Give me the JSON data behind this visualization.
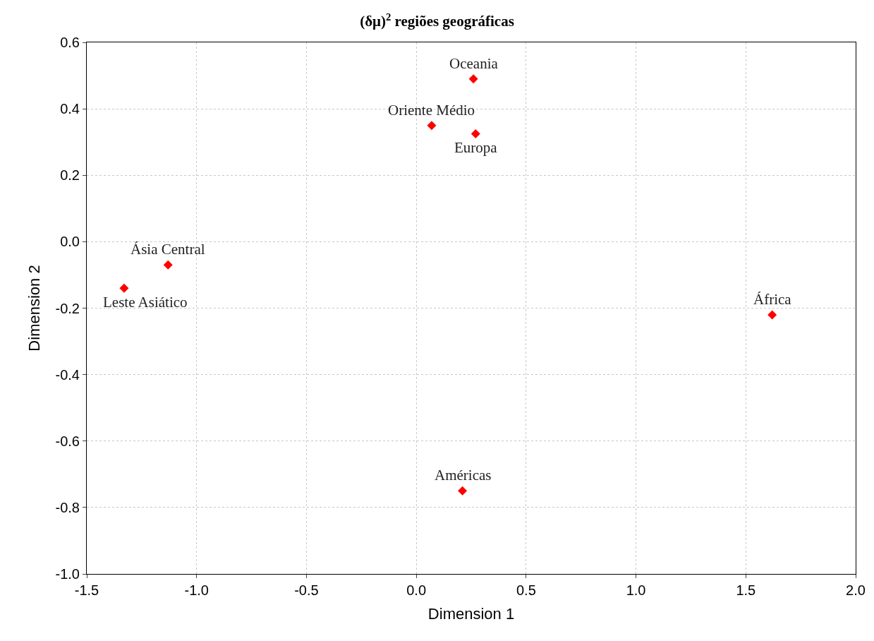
{
  "chart_data": {
    "type": "scatter",
    "title": "(δμ)$^{2}$ regiões geográficas",
    "xlabel": "Dimension 1",
    "ylabel": "Dimension 2",
    "x": [
      0.26,
      0.07,
      0.27,
      -1.13,
      -1.33,
      1.62,
      0.21
    ],
    "series": [
      {
        "color": "#ff0000",
        "values": [
          0.49,
          0.35,
          0.325,
          -0.07,
          -0.14,
          -0.22,
          -0.75
        ]
      }
    ],
    "annotations": [
      {
        "text": "Oceania",
        "x": 0.26,
        "y": 0.49
      },
      {
        "text": "Oriente Médio",
        "x": 0.07,
        "y": 0.35
      },
      {
        "text": "Europa",
        "x": 0.27,
        "y": 0.325
      },
      {
        "text": "Ásia Central",
        "x": -1.13,
        "y": -0.07
      },
      {
        "text": "Leste Asiático",
        "x": -1.33,
        "y": -0.14
      },
      {
        "text": "África",
        "x": 1.62,
        "y": -0.22
      },
      {
        "text": "Américas",
        "x": 0.21,
        "y": -0.75
      }
    ],
    "xlim": [
      -1.5,
      2.0
    ],
    "xticks": [
      {
        "value": -1.5,
        "label": "-1.5"
      },
      {
        "value": -1.0,
        "label": "-1.0"
      },
      {
        "value": -0.5,
        "label": "-0.5"
      },
      {
        "value": 0.0,
        "label": "0.0"
      },
      {
        "value": 0.5,
        "label": "0.5"
      },
      {
        "value": 1.0,
        "label": "1.0"
      },
      {
        "value": 1.5,
        "label": "1.5"
      },
      {
        "value": 2.0,
        "label": "2.0"
      }
    ],
    "ylim": [
      -1.0,
      0.6
    ],
    "yticks": [
      {
        "value": -1.0,
        "label": "-1.0"
      },
      {
        "value": -0.8,
        "label": "-0.8"
      },
      {
        "value": -0.6,
        "label": "-0.6"
      },
      {
        "value": -0.4,
        "label": "-0.4"
      },
      {
        "value": -0.2,
        "label": "-0.2"
      },
      {
        "value": 0.0,
        "label": "0.0"
      },
      {
        "value": 0.2,
        "label": "0.2"
      },
      {
        "value": 0.4,
        "label": "0.4"
      },
      {
        "value": 0.6,
        "label": "0.6"
      }
    ],
    "grid": true,
    "marker": "diamond"
  }
}
